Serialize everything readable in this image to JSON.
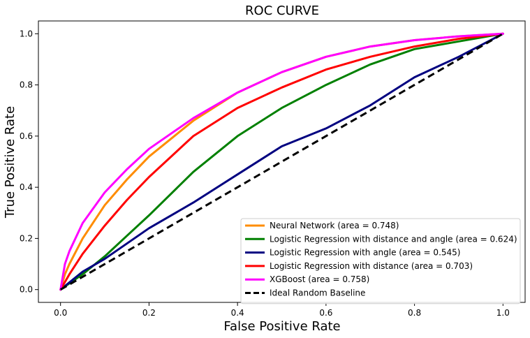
{
  "chart_data": {
    "type": "line",
    "title": "ROC CURVE",
    "xlabel": "False Positive Rate",
    "ylabel": "True Positive Rate",
    "xlim": [
      -0.05,
      1.05
    ],
    "ylim": [
      -0.05,
      1.05
    ],
    "xticks": [
      0.0,
      0.2,
      0.4,
      0.6,
      0.8,
      1.0
    ],
    "yticks": [
      0.0,
      0.2,
      0.4,
      0.6,
      0.8,
      1.0
    ],
    "xtick_labels": [
      "0.0",
      "0.2",
      "0.4",
      "0.6",
      "0.8",
      "1.0"
    ],
    "ytick_labels": [
      "0.0",
      "0.2",
      "0.4",
      "0.6",
      "0.8",
      "1.0"
    ],
    "grid": false,
    "legend_position": "bottom-right",
    "series": [
      {
        "name": "Neural Network (area = 0.748)",
        "color": "#ff8c00",
        "dashed": false,
        "x": [
          0.0,
          0.01,
          0.02,
          0.05,
          0.1,
          0.15,
          0.2,
          0.3,
          0.4,
          0.5,
          0.6,
          0.7,
          0.8,
          0.9,
          1.0
        ],
        "y": [
          0.0,
          0.06,
          0.1,
          0.2,
          0.33,
          0.43,
          0.52,
          0.66,
          0.77,
          0.85,
          0.91,
          0.95,
          0.975,
          0.99,
          1.0
        ]
      },
      {
        "name": "Logistic Regression with distance and angle (area = 0.624)",
        "color": "#008000",
        "dashed": false,
        "x": [
          0.0,
          0.05,
          0.1,
          0.15,
          0.2,
          0.3,
          0.4,
          0.5,
          0.6,
          0.7,
          0.8,
          0.9,
          1.0
        ],
        "y": [
          0.0,
          0.06,
          0.13,
          0.21,
          0.29,
          0.46,
          0.6,
          0.71,
          0.8,
          0.88,
          0.94,
          0.97,
          1.0
        ]
      },
      {
        "name": "Logistic Regression with angle (area = 0.545)",
        "color": "#000080",
        "dashed": false,
        "x": [
          0.0,
          0.05,
          0.1,
          0.2,
          0.3,
          0.4,
          0.5,
          0.6,
          0.7,
          0.8,
          0.9,
          1.0
        ],
        "y": [
          0.0,
          0.07,
          0.12,
          0.24,
          0.34,
          0.45,
          0.56,
          0.63,
          0.72,
          0.83,
          0.91,
          1.0
        ]
      },
      {
        "name": "Logistic Regression with distance (area = 0.703)",
        "color": "#ff0000",
        "dashed": false,
        "x": [
          0.0,
          0.02,
          0.05,
          0.1,
          0.15,
          0.2,
          0.3,
          0.4,
          0.5,
          0.6,
          0.7,
          0.8,
          0.9,
          1.0
        ],
        "y": [
          0.0,
          0.06,
          0.14,
          0.25,
          0.35,
          0.44,
          0.6,
          0.71,
          0.79,
          0.86,
          0.91,
          0.95,
          0.98,
          1.0
        ]
      },
      {
        "name": "XGBoost (area = 0.758)",
        "color": "#ff00ff",
        "dashed": false,
        "x": [
          0.0,
          0.01,
          0.02,
          0.05,
          0.1,
          0.15,
          0.2,
          0.3,
          0.4,
          0.5,
          0.6,
          0.7,
          0.8,
          0.9,
          1.0
        ],
        "y": [
          0.0,
          0.1,
          0.15,
          0.26,
          0.38,
          0.47,
          0.55,
          0.67,
          0.77,
          0.85,
          0.91,
          0.95,
          0.975,
          0.99,
          1.0
        ]
      },
      {
        "name": "Ideal Random Baseline",
        "color": "#000000",
        "dashed": true,
        "x": [
          0.0,
          1.0
        ],
        "y": [
          0.0,
          1.0
        ]
      }
    ]
  }
}
